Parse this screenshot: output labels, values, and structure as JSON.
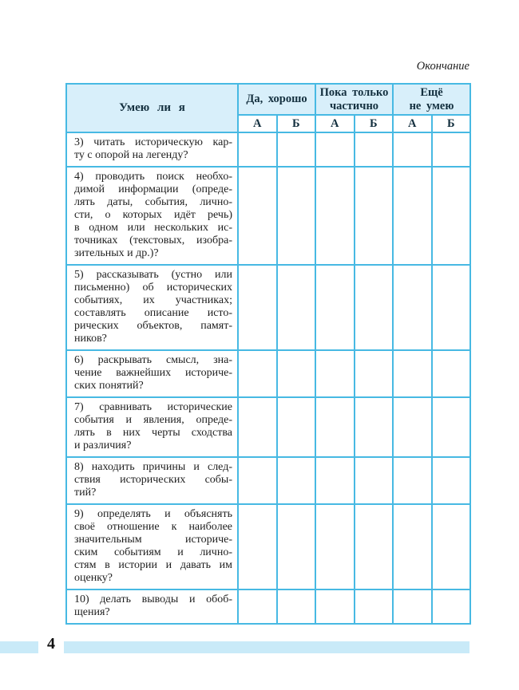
{
  "page": {
    "continuation_label": "Окончание",
    "page_number": "4"
  },
  "colors": {
    "border": "#47b9e3",
    "header-bg": "#d8effa",
    "footer-bar": "#c9eaf8",
    "text": "#1e1e1e",
    "header-text": "#14303f"
  },
  "table": {
    "corner_header": "Умею ли я",
    "column_groups": [
      {
        "label": "Да, хорошо"
      },
      {
        "label": "Пока только\nчастично"
      },
      {
        "label": "Ещё\nне умею"
      }
    ],
    "sub_headers": [
      "А",
      "Б",
      "А",
      "Б",
      "А",
      "Б"
    ],
    "rows": [
      {
        "lines": [
          "3) читать историческую кар-",
          "ту с опорой на легенду?"
        ]
      },
      {
        "lines": [
          "4) проводить поиск необхо-",
          "димой информации (опреде-",
          "лять даты, события, лично-",
          "сти, о которых идёт речь)",
          "в одном или нескольких ис-",
          "точниках (текстовых, изобра-",
          "зительных и др.)?"
        ]
      },
      {
        "lines": [
          "5) рассказывать (устно или",
          "письменно) об исторических",
          "событиях, их участниках;",
          "составлять описание исто-",
          "рических объектов, памят-",
          "ников?"
        ]
      },
      {
        "lines": [
          "6) раскрывать смысл, зна-",
          "чение важнейших историче-",
          "ских понятий?"
        ]
      },
      {
        "lines": [
          "7) сравнивать исторические",
          "события и явления, опреде-",
          "лять в них черты сходства",
          "и различия?"
        ]
      },
      {
        "lines": [
          "8) находить причины и след-",
          "ствия исторических собы-",
          "тий?"
        ]
      },
      {
        "lines": [
          "9) определять и объяснять",
          "своё отношение к наиболее",
          "значительным историче-",
          "ским событиям и лично-",
          "стям в истории и давать им",
          "оценку?"
        ]
      },
      {
        "lines": [
          "10) делать выводы и обоб-",
          "щения?"
        ]
      }
    ]
  }
}
